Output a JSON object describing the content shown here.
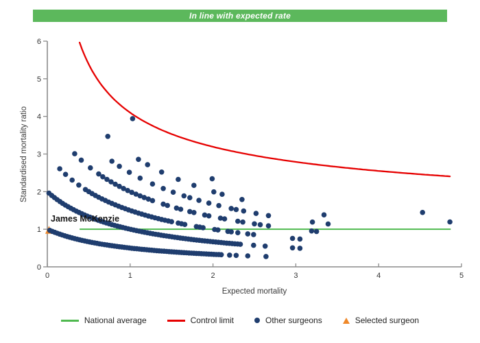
{
  "header": {
    "title": "In line with expected rate",
    "bg_color": "#5cb85c",
    "text_color": "#ffffff"
  },
  "chart_data": {
    "type": "scatter",
    "title": "In line with expected rate",
    "xlabel": "Expected mortality",
    "ylabel": "Standardised mortality ratio",
    "xlim": [
      0,
      5
    ],
    "ylim": [
      0,
      6
    ],
    "xticks": [
      0,
      1,
      2,
      3,
      4,
      5
    ],
    "yticks": [
      0,
      1,
      2,
      3,
      4,
      5,
      6
    ],
    "grid": false,
    "national_average": {
      "label": "National average",
      "y": 1,
      "x_start": 0.39,
      "x_end": 4.87,
      "color": "#4fb94f"
    },
    "control_limit": {
      "label": "Control limit",
      "formula": "y = 1 + 3.1/sqrt(x)",
      "x_start": 0.39,
      "x_end": 4.87,
      "y_at_start": 5.96,
      "y_at_end": 2.4,
      "color": "#e60000"
    },
    "other_surgeons": {
      "label": "Other surgeons",
      "color": "#1f3d6e",
      "marker": "dot",
      "marker_radius": 3.8,
      "band_formula": "smr = k / (expected + 1)",
      "bands": [
        {
          "k": 1,
          "segments": [
            [
              0.03,
              2.1,
              0.03
            ]
          ],
          "extra": [
            2.2,
            2.28,
            2.42,
            2.64
          ]
        },
        {
          "k": 2,
          "segments": [
            [
              0.02,
              2.35,
              0.033
            ]
          ],
          "extra": [
            2.49,
            2.63,
            2.96,
            3.05
          ]
        },
        {
          "k": 3,
          "segments": [
            [
              0.46,
              1.5,
              0.04
            ]
          ],
          "extra": [
            0.15,
            0.22,
            0.3,
            0.38,
            1.58,
            1.62,
            1.66,
            1.8,
            1.84,
            1.88,
            2.02,
            2.06,
            2.18,
            2.22,
            2.3,
            2.42,
            2.49,
            2.96,
            3.05
          ]
        },
        {
          "k": 4,
          "segments": [
            [
              0.62,
              1.3,
              0.05
            ]
          ],
          "extra": [
            0.33,
            0.41,
            0.52,
            1.4,
            1.45,
            1.56,
            1.61,
            1.72,
            1.77,
            1.9,
            1.95,
            2.09,
            2.14,
            2.3,
            2.36,
            2.5,
            2.57,
            2.67,
            3.19,
            3.25
          ]
        },
        {
          "k": 5,
          "segments": [],
          "extra": [
            0.78,
            0.87,
            0.99,
            1.12,
            1.27,
            1.4,
            1.52,
            1.65,
            1.72,
            1.83,
            1.95,
            2.07,
            2.22,
            2.28,
            2.37,
            2.52,
            2.67,
            3.2,
            3.39
          ]
        },
        {
          "k": 6,
          "segments": [],
          "extra": [
            0.73,
            1.1,
            1.21,
            1.38,
            1.58,
            1.77,
            2.01,
            2.11,
            2.35,
            3.34
          ]
        },
        {
          "k": 7,
          "segments": [],
          "extra": [
            1.99,
            4.86
          ]
        },
        {
          "k": 8,
          "segments": [],
          "extra": [
            1.03,
            4.53
          ]
        }
      ]
    },
    "selected_surgeon": {
      "label": "Selected surgeon",
      "name": "James McKenzie",
      "x": 0.02,
      "y": 0.98,
      "color": "#ef8829",
      "marker": "triangle"
    },
    "legend_position": "bottom"
  },
  "legend": [
    {
      "label": "National average",
      "marker": "line",
      "color": "#4fb94f"
    },
    {
      "label": "Control limit",
      "marker": "line",
      "color": "#e60000"
    },
    {
      "label": "Other surgeons",
      "marker": "dot",
      "color": "#1f3d6e"
    },
    {
      "label": "Selected surgeon",
      "marker": "triangle",
      "color": "#ef8829"
    }
  ],
  "axis": {
    "color": "#8a8a8a",
    "tick_label_color": "#333333"
  }
}
